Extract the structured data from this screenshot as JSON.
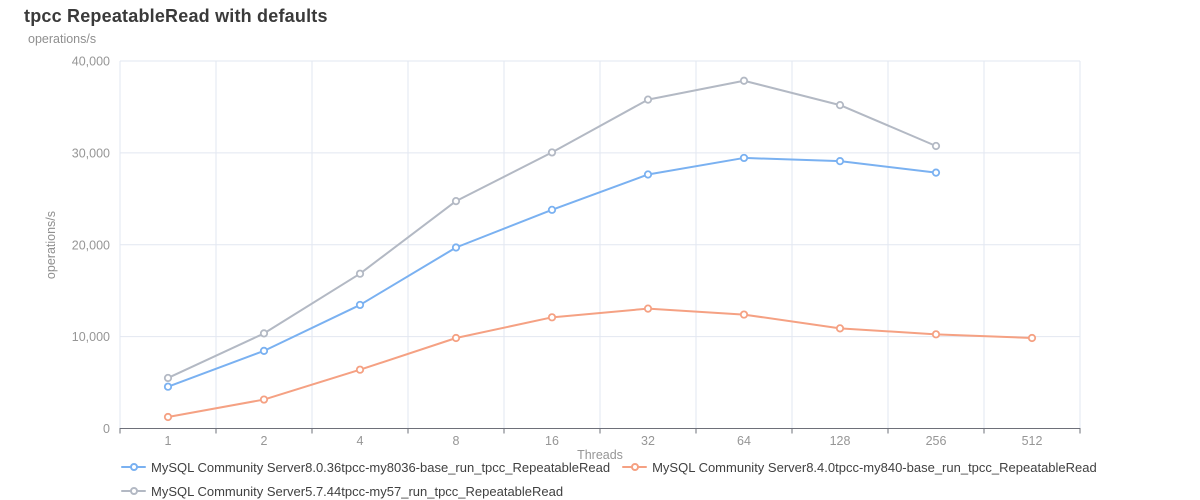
{
  "header": {
    "title": "tpcc RepeatableRead with defaults",
    "unit": "operations/s"
  },
  "colors": {
    "title_text": "#3a3a3a",
    "legend_text": "#414141",
    "tick_text": "#969696",
    "axis": "#6E7079",
    "grid": "#E2E7F1",
    "marker_fill": "#ffffff",
    "accent_blue": "#7AB1F1",
    "accent_orange": "#F5A183",
    "accent_gray": "#B3B9C4"
  },
  "chart_data": {
    "type": "line",
    "title": "tpcc RepeatableRead with defaults",
    "xlabel": "Threads",
    "ylabel": "operations/s",
    "categories": [
      "1",
      "2",
      "4",
      "8",
      "16",
      "32",
      "64",
      "128",
      "256",
      "512"
    ],
    "ylim": [
      0,
      40000
    ],
    "yticks": [
      0,
      10000,
      20000,
      30000,
      40000
    ],
    "ytick_labels": [
      "0",
      "10,000",
      "20,000",
      "30,000",
      "40,000"
    ],
    "grid": true,
    "legend_position": "bottom",
    "marker": "empty-circle",
    "series": [
      {
        "name": "MySQL Community Server8.0.36tpcc-my8036-base_run_tpcc_RepeatableRead",
        "color": "#7AB1F1",
        "values": [
          4550,
          8450,
          13450,
          19700,
          23800,
          27650,
          29450,
          29100,
          27850,
          null
        ]
      },
      {
        "name": "MySQL Community Server8.4.0tpcc-my840-base_run_tpcc_RepeatableRead",
        "color": "#F5A183",
        "values": [
          1250,
          3150,
          6400,
          9850,
          12100,
          13050,
          12400,
          10900,
          10250,
          9850
        ]
      },
      {
        "name": "MySQL Community Server5.7.44tpcc-my57_run_tpcc_RepeatableRead",
        "color": "#B3B9C4",
        "values": [
          5500,
          10350,
          16850,
          24750,
          30050,
          35800,
          37850,
          35200,
          30750,
          null
        ]
      }
    ]
  }
}
